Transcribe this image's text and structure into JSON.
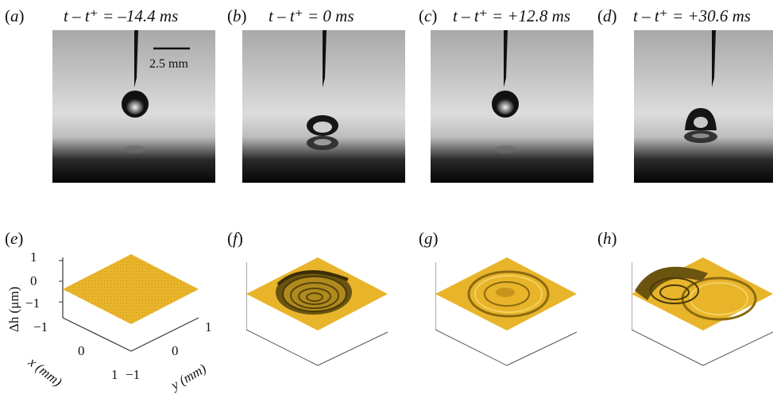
{
  "top_panels": [
    {
      "label": "a",
      "time": "−–14.4 ms",
      "time_text": "t – t⁺ = –14.4 ms"
    },
    {
      "label": "b",
      "time_text": "t – t⁺ = 0 ms"
    },
    {
      "label": "c",
      "time_text": "t – t⁺ = +12.8 ms"
    },
    {
      "label": "d",
      "time_text": "t – t⁺ = +30.6 ms"
    }
  ],
  "scale_bar": "2.5 mm",
  "bottom_panels": [
    {
      "label": "e"
    },
    {
      "label": "f"
    },
    {
      "label": "g"
    },
    {
      "label": "h"
    }
  ],
  "axes": {
    "z_label": "Δh (μm)",
    "z_ticks": [
      "1",
      "0",
      "−1"
    ],
    "x_label": "x (mm)",
    "x_ticks": [
      "−1",
      "0",
      "1"
    ],
    "y_label": "y (mm)",
    "y_ticks": [
      "−1",
      "0",
      "1"
    ]
  },
  "colors": {
    "surface": "#e8b42a",
    "surface_dark": "#8a6a10"
  }
}
